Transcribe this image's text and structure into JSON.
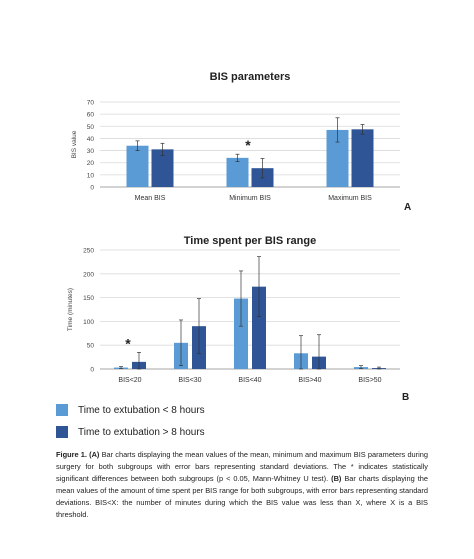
{
  "colors": {
    "light": "#5b9bd5",
    "dark": "#2f5597",
    "grid": "#d9d9d9",
    "axis": "#888888"
  },
  "legend": [
    {
      "label": "Time to extubation < 8 hours",
      "color": "#5b9bd5"
    },
    {
      "label": "Time to extubation > 8 hours",
      "color": "#2f5597"
    }
  ],
  "chart_data": [
    {
      "type": "bar",
      "title": "BIS parameters",
      "panel_label": "A",
      "ylabel": "BIS value",
      "xlabel": "",
      "ylim": [
        0,
        70
      ],
      "yticks": [
        0,
        10,
        20,
        30,
        40,
        50,
        60,
        70
      ],
      "grid": true,
      "categories": [
        "Mean BIS",
        "Minimum BIS",
        "Maximum BIS"
      ],
      "series": [
        {
          "name": "Time to extubation < 8 hours",
          "values": [
            34,
            24,
            47
          ],
          "errors": [
            4,
            3,
            10
          ]
        },
        {
          "name": "Time to extubation > 8 hours",
          "values": [
            31,
            15.5,
            47.5
          ],
          "errors": [
            5,
            8,
            4
          ]
        }
      ],
      "significance": [
        "",
        "*",
        ""
      ]
    },
    {
      "type": "bar",
      "title": "Time spent per BIS range",
      "panel_label": "B",
      "ylabel": "Time (minutes)",
      "xlabel": "",
      "ylim": [
        0,
        250
      ],
      "yticks": [
        0,
        50,
        100,
        150,
        200,
        250
      ],
      "grid": true,
      "categories": [
        "BIS<20",
        "BIS<30",
        "BIS<40",
        "BIS>40",
        "BIS>50"
      ],
      "series": [
        {
          "name": "Time to extubation < 8 hours",
          "values": [
            3,
            55,
            148,
            33,
            4
          ],
          "errors": [
            2,
            48,
            58,
            37,
            3
          ]
        },
        {
          "name": "Time to extubation > 8 hours",
          "values": [
            15,
            90,
            173,
            26,
            2
          ],
          "errors": [
            20,
            58,
            63,
            46,
            2
          ]
        }
      ],
      "significance": [
        "*",
        "",
        "",
        "",
        ""
      ]
    }
  ],
  "caption": {
    "bold_a": "Figure 1. (A)",
    "text_a": " Bar charts displaying the mean values of the mean, minimum and maximum BIS parameters during surgery for both subgroups with error bars representing standard deviations. The * indicates statistically significant differences between both subgroups (p < 0.05, Mann-Whitney U test). ",
    "bold_b": "(B)",
    "text_b": " Bar charts displaying the mean values of the amount of time spent per BIS range for both subgroups, with error bars representing standard deviations. BIS<X: the number of minutes during which the BIS value was less than X, where X is a BIS threshold."
  }
}
